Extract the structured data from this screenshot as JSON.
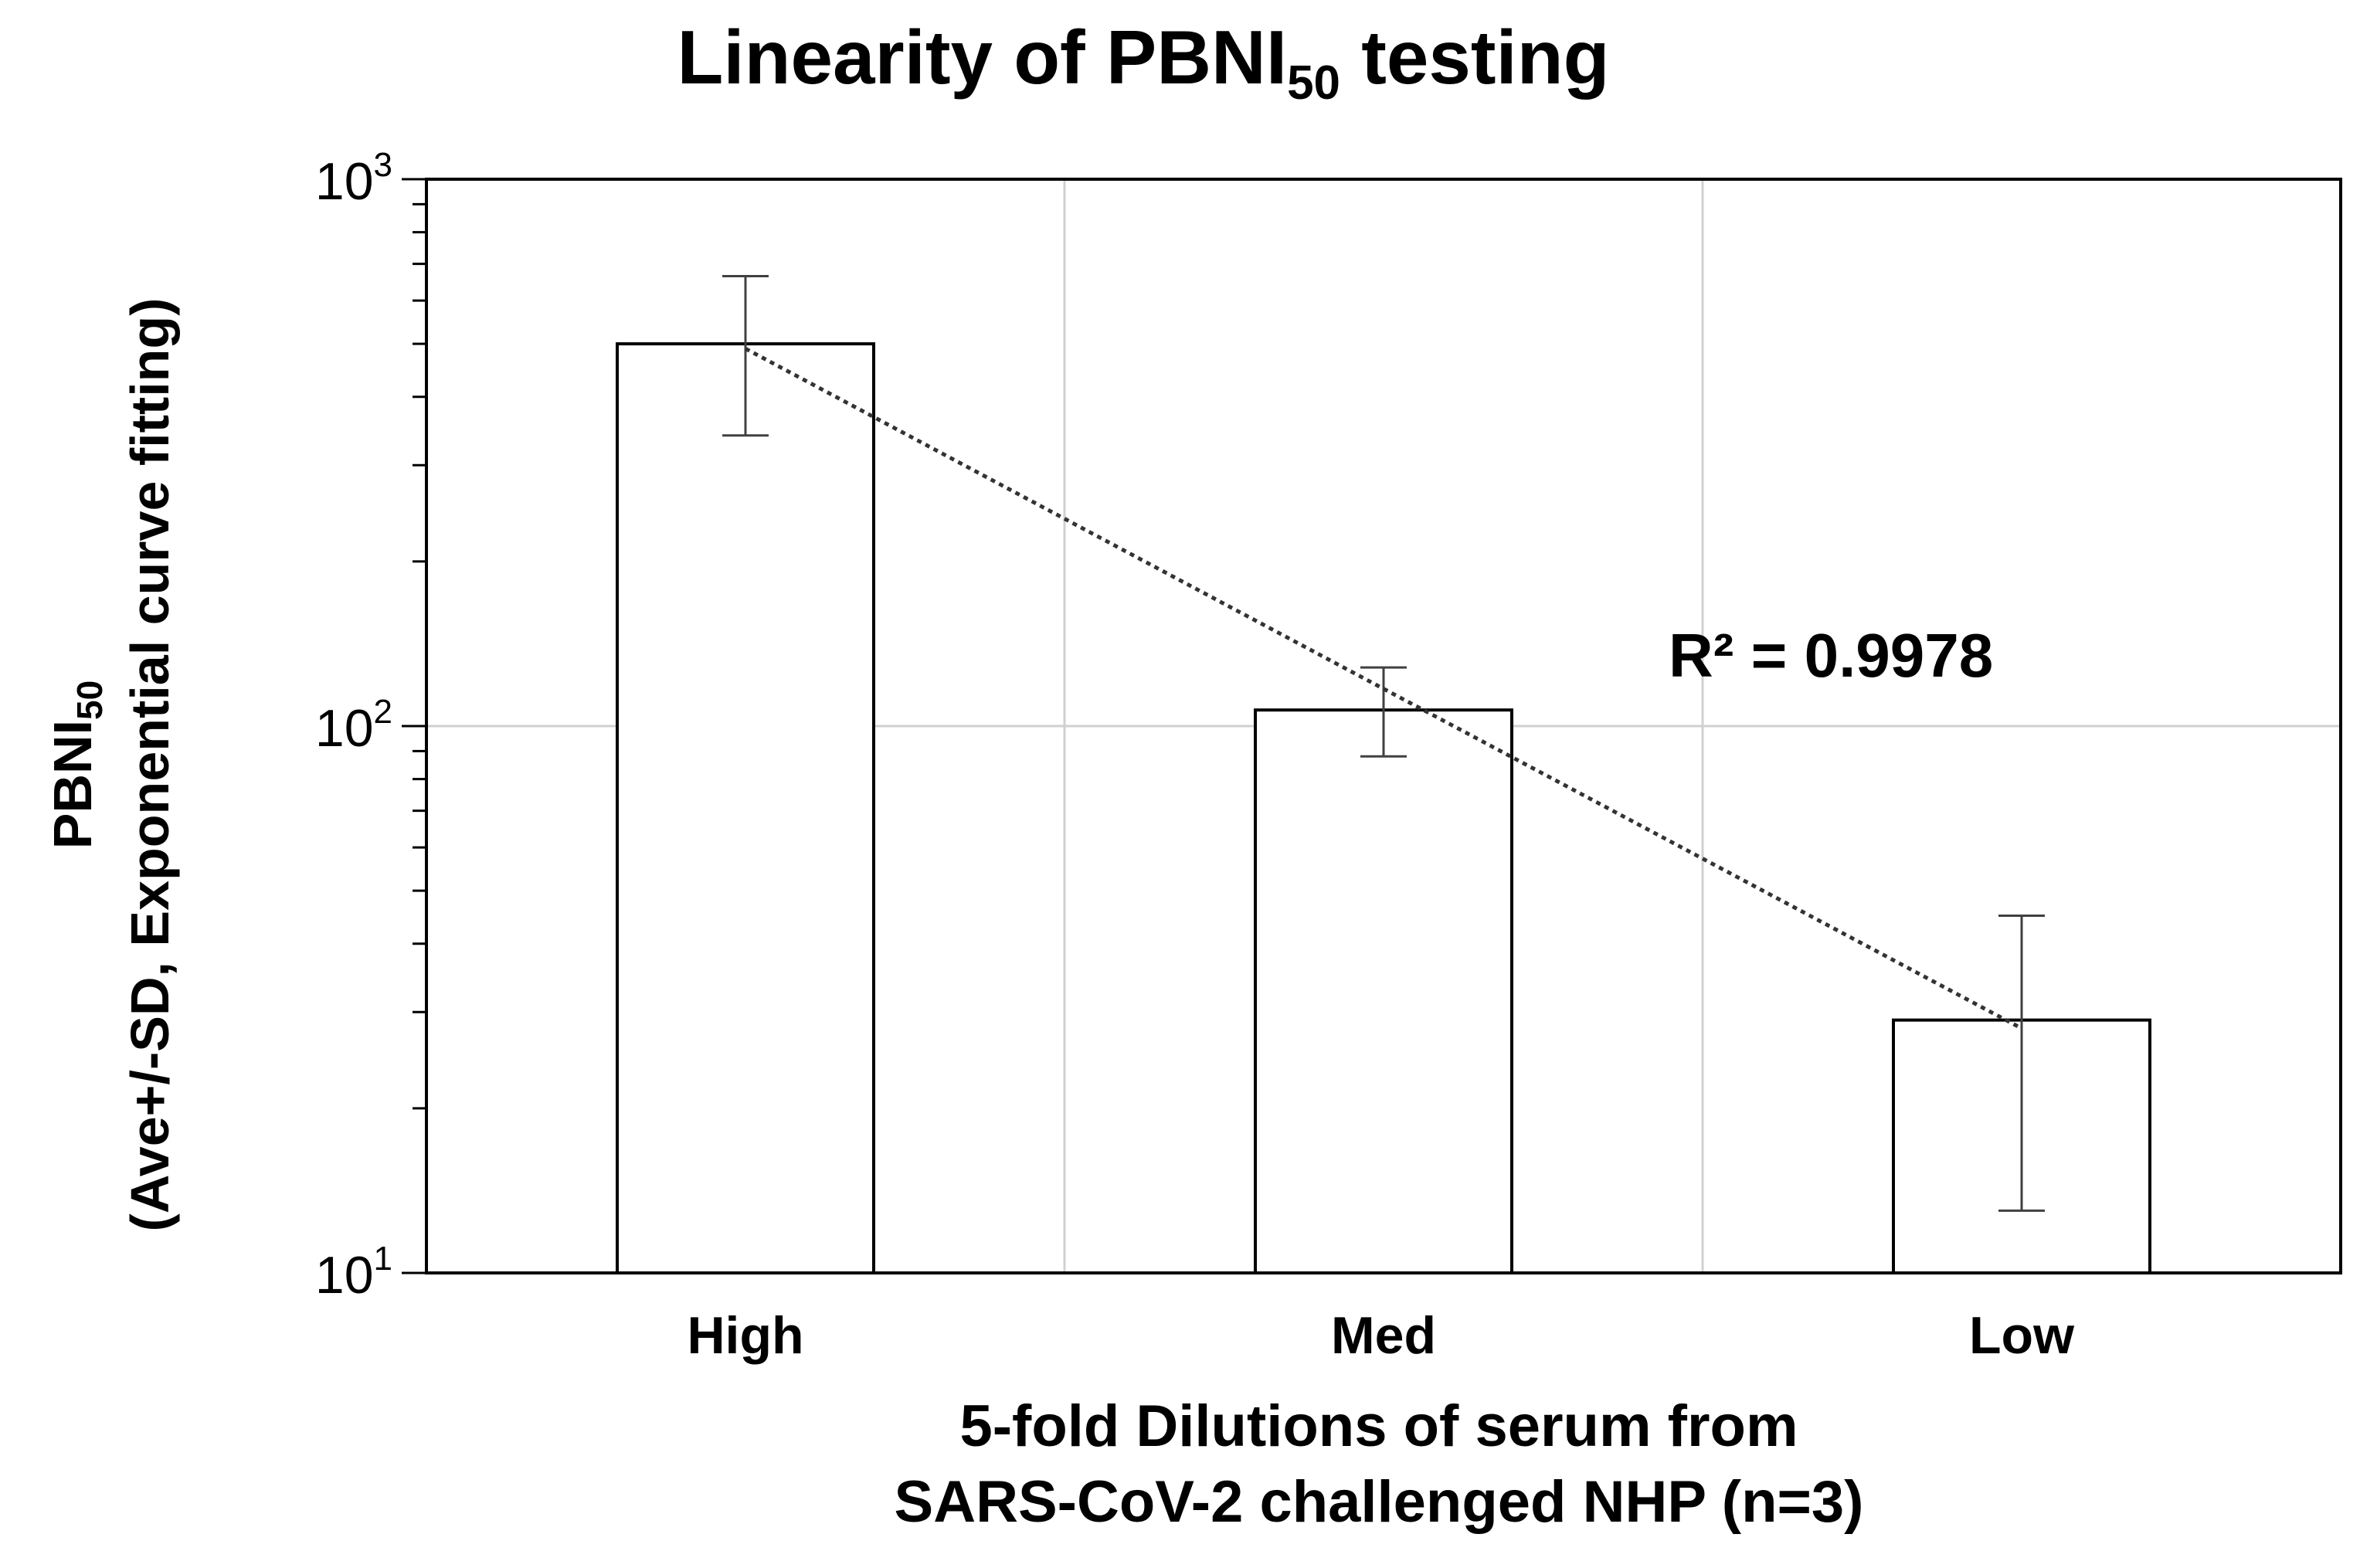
{
  "chart_data": {
    "type": "bar",
    "title": "Linearity of PBNI",
    "title_subscript": "50",
    "title_suffix": " testing",
    "ylabel_line1": "PBNI",
    "ylabel_line1_subscript": "50",
    "ylabel_line2": "(Ave+/-SD, Exponential curve fitting)",
    "xlabel_line1": "5-fold Dilutions of serum from",
    "xlabel_line2": "SARS-CoV-2 challenged NHP (n=3)",
    "categories": [
      "High",
      "Med",
      "Low"
    ],
    "values": [
      500,
      107,
      29
    ],
    "error_low": [
      340,
      88,
      13
    ],
    "error_high": [
      665,
      128,
      45
    ],
    "yscale": "log",
    "ylim": [
      10,
      1000
    ],
    "ytick_bases": [
      "10",
      "10",
      "10"
    ],
    "ytick_exponents": [
      "1",
      "2",
      "3"
    ],
    "grid": true,
    "trendline": {
      "type": "exponential",
      "values": [
        490,
        117,
        28
      ],
      "label": "R² = 0.9978"
    },
    "colors": {
      "bar_fill": "#ffffff",
      "bar_edge": "#000000",
      "grid": "#d0d0d0",
      "error_bar": "#404040",
      "trendline": "#333333"
    }
  }
}
